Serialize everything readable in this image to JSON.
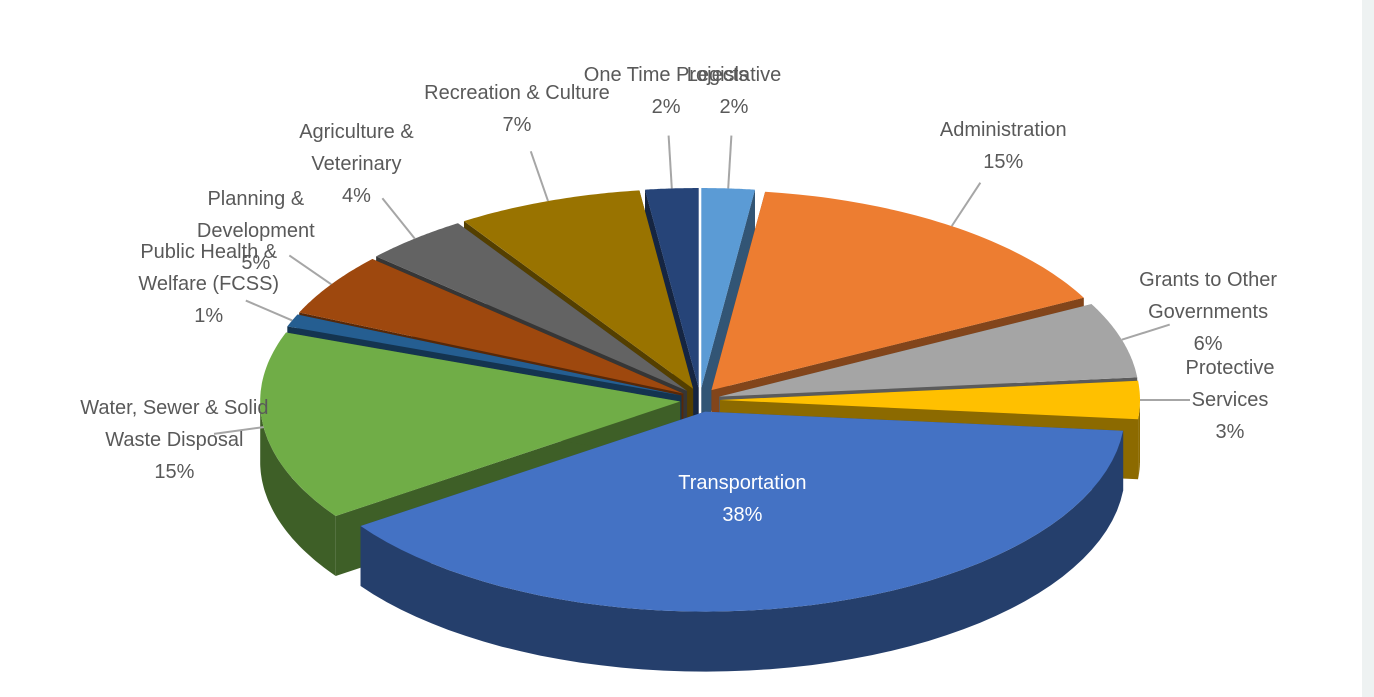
{
  "chart_data": {
    "type": "pie",
    "categories": [
      "Legislative",
      "Administration",
      "Grants to Other Governments",
      "Protective Services",
      "Transportation",
      "Water, Sewer & Solid Waste Disposal",
      "Public Health & Welfare (FCSS)",
      "Planning & Development",
      "Agriculture & Veterinary",
      "Recreation & Culture",
      "One Time Projects"
    ],
    "values": [
      2,
      15,
      6,
      3,
      38,
      15,
      1,
      5,
      4,
      7,
      2
    ],
    "value_labels": [
      "2%",
      "15%",
      "6%",
      "3%",
      "38%",
      "15%",
      "1%",
      "5%",
      "4%",
      "7%",
      "2%"
    ],
    "colors": [
      "#5b9bd5",
      "#ed7d31",
      "#a5a5a5",
      "#ffc000",
      "#4472c4",
      "#70ad47",
      "#255e91",
      "#9e480e",
      "#636363",
      "#997300",
      "#264478"
    ]
  }
}
